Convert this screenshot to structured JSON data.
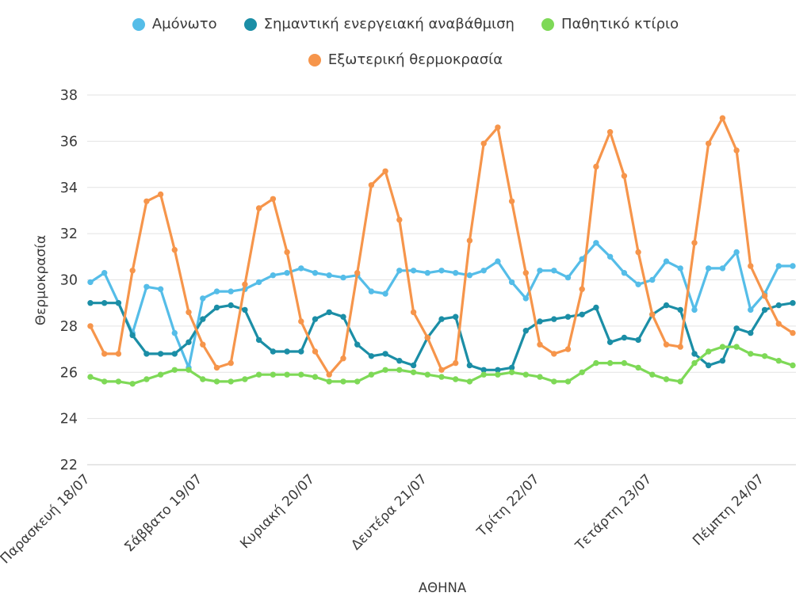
{
  "chart_data": {
    "type": "line",
    "title": "",
    "ylabel": "Θερμοκρασία",
    "xlabel": "ΑΘΗΝΑ",
    "ylim": [
      22,
      38
    ],
    "yticks": [
      22,
      24,
      26,
      28,
      30,
      32,
      34,
      36,
      38
    ],
    "grid": "horizontal",
    "legend_position": "top",
    "sampling": "3-hourly",
    "x_ticks_every": 8,
    "x_tick_labels": [
      "Παρασκευή 18/07",
      "Σάββατο 19/07",
      "Κυριακή 20/07",
      "Δευτέρα 21/07",
      "Τρίτη 22/07",
      "Τετάρτη 23/07",
      "Πέμπτη 24/07"
    ],
    "series": [
      {
        "name": "Αμόνωτο",
        "color": "#55BDE8",
        "values": [
          29.9,
          30.3,
          29.0,
          27.7,
          29.7,
          29.6,
          27.7,
          26.2,
          29.2,
          29.5,
          29.5,
          29.6,
          29.9,
          30.2,
          30.3,
          30.5,
          30.3,
          30.2,
          30.1,
          30.2,
          29.5,
          29.4,
          30.4,
          30.4,
          30.3,
          30.4,
          30.3,
          30.2,
          30.4,
          30.8,
          29.9,
          29.2,
          30.4,
          30.4,
          30.1,
          30.9,
          31.6,
          31.0,
          30.3,
          29.8,
          30.0,
          30.8,
          30.5,
          28.7,
          30.5,
          30.5,
          31.2,
          28.7,
          29.4,
          30.6,
          30.6
        ]
      },
      {
        "name": "Σημαντική ενεργειακή αναβάθμιση",
        "color": "#1B8EA6",
        "values": [
          29.0,
          29.0,
          29.0,
          27.6,
          26.8,
          26.8,
          26.8,
          27.3,
          28.3,
          28.8,
          28.9,
          28.7,
          27.4,
          26.9,
          26.9,
          26.9,
          28.3,
          28.6,
          28.4,
          27.2,
          26.7,
          26.8,
          26.5,
          26.3,
          27.5,
          28.3,
          28.4,
          26.3,
          26.1,
          26.1,
          26.2,
          27.8,
          28.2,
          28.3,
          28.4,
          28.5,
          28.8,
          27.3,
          27.5,
          27.4,
          28.5,
          28.9,
          28.7,
          26.8,
          26.3,
          26.5,
          27.9,
          27.7,
          28.7,
          28.9,
          29.0
        ]
      },
      {
        "name": "Παθητικό κτίριο",
        "color": "#7ED957",
        "values": [
          25.8,
          25.6,
          25.6,
          25.5,
          25.7,
          25.9,
          26.1,
          26.1,
          25.7,
          25.6,
          25.6,
          25.7,
          25.9,
          25.9,
          25.9,
          25.9,
          25.8,
          25.6,
          25.6,
          25.6,
          25.9,
          26.1,
          26.1,
          26.0,
          25.9,
          25.8,
          25.7,
          25.6,
          25.9,
          25.9,
          26.0,
          25.9,
          25.8,
          25.6,
          25.6,
          26.0,
          26.4,
          26.4,
          26.4,
          26.2,
          25.9,
          25.7,
          25.6,
          26.4,
          26.9,
          27.1,
          27.1,
          26.8,
          26.7,
          26.5,
          26.3
        ]
      },
      {
        "name": "Εξωτερική θερμοκρασία",
        "color": "#F6954B",
        "values": [
          28.0,
          26.8,
          26.8,
          30.4,
          33.4,
          33.7,
          31.3,
          28.6,
          27.2,
          26.2,
          26.4,
          29.8,
          33.1,
          33.5,
          31.2,
          28.2,
          26.9,
          25.9,
          26.6,
          30.3,
          34.1,
          34.7,
          32.6,
          28.6,
          27.5,
          26.1,
          26.4,
          31.7,
          35.9,
          36.6,
          33.4,
          30.3,
          27.2,
          26.8,
          27.0,
          29.6,
          34.9,
          36.4,
          34.5,
          31.2,
          28.5,
          27.2,
          27.1,
          31.6,
          35.9,
          37.0,
          35.6,
          30.6,
          29.3,
          28.1,
          27.7
        ]
      }
    ]
  }
}
